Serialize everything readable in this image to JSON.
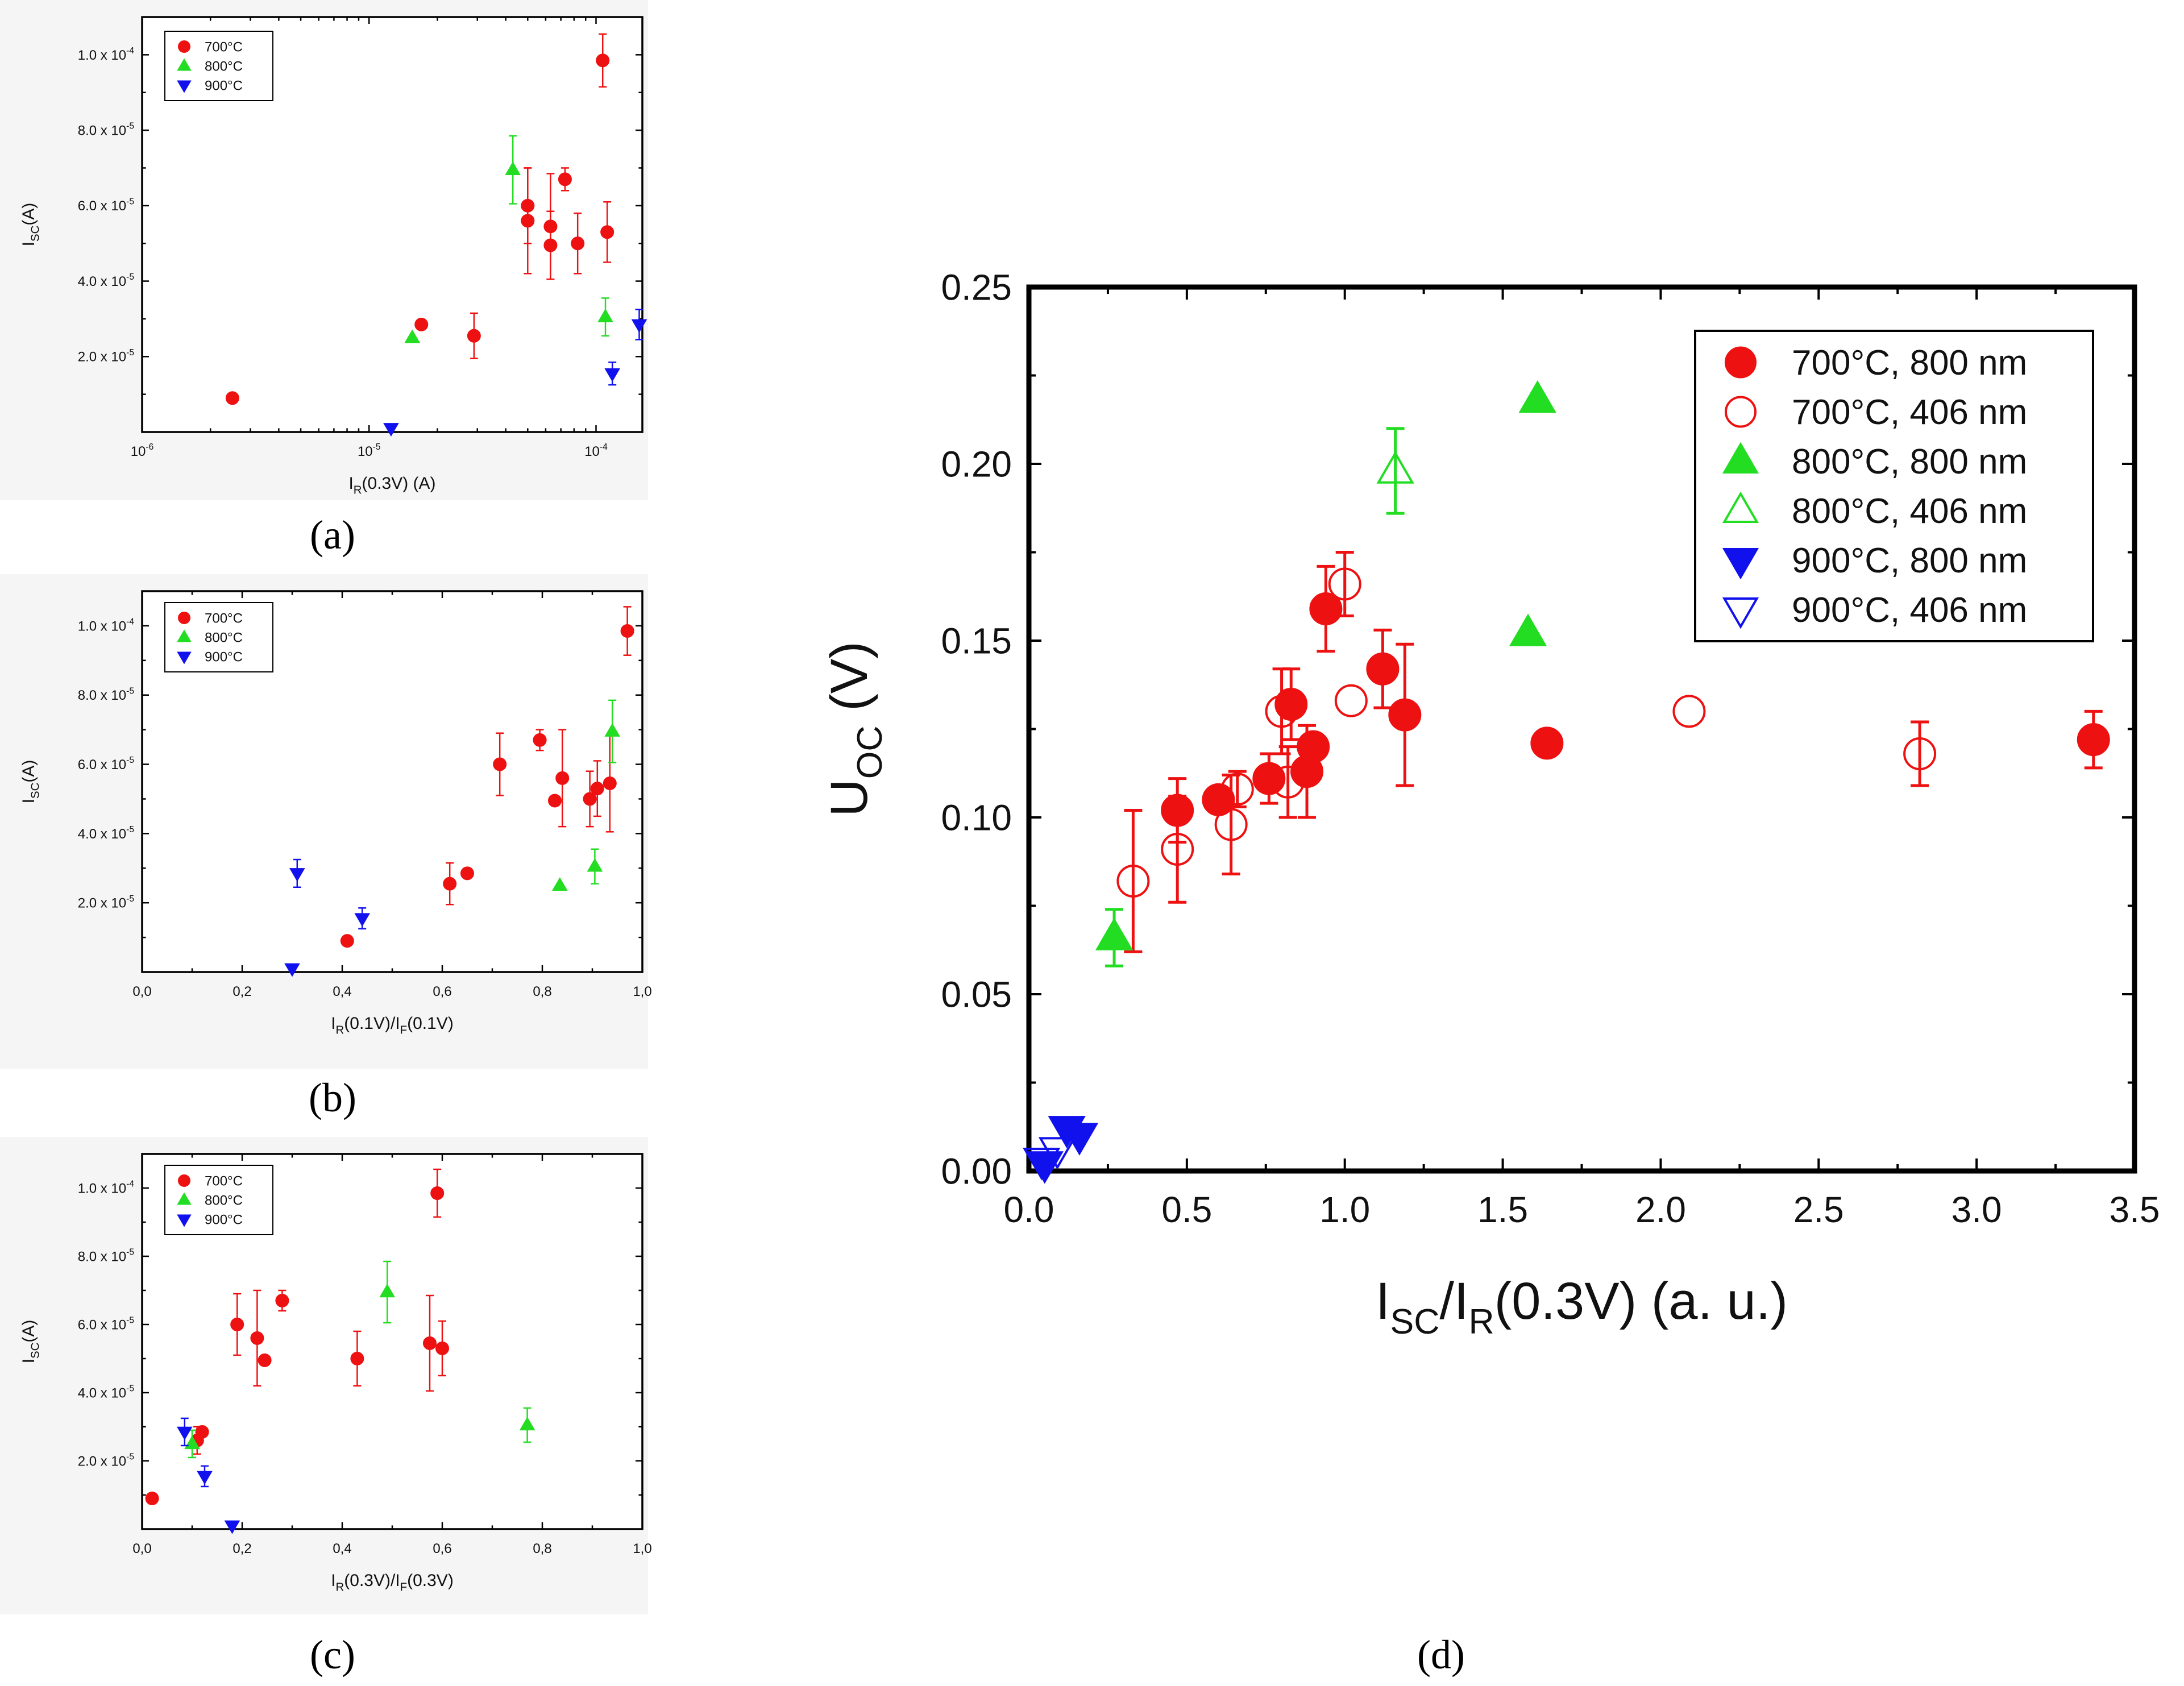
{
  "colors": {
    "red": "#ee1111",
    "green": "#22dd22",
    "blue": "#1111ee",
    "frame": "#000000"
  },
  "captions": {
    "a": "(a)",
    "b": "(b)",
    "c": "(c)",
    "d": "(d)"
  },
  "chart_data": [
    {
      "id": "a",
      "type": "scatter",
      "xlabel_main": "I",
      "xlabel_sub": "R",
      "xlabel_rest": "(0.3V) (A)",
      "ylabel_main": "I",
      "ylabel_sub": "SC",
      "ylabel_rest": "(A)",
      "x_scale": "log",
      "xlim": [
        1e-06,
        0.00016
      ],
      "ylim": [
        0,
        0.00011
      ],
      "x_ticks": [
        {
          "value": 1e-06,
          "base": "10",
          "exp": "-6"
        },
        {
          "value": 1e-05,
          "base": "10",
          "exp": "-5"
        },
        {
          "value": 0.0001,
          "base": "10",
          "exp": "-4"
        }
      ],
      "y_ticks": [
        {
          "value": 2e-05,
          "base": "2.0 x 10",
          "exp": "-5"
        },
        {
          "value": 4e-05,
          "base": "4.0 x 10",
          "exp": "-5"
        },
        {
          "value": 6e-05,
          "base": "6.0 x 10",
          "exp": "-5"
        },
        {
          "value": 8e-05,
          "base": "8.0 x 10",
          "exp": "-5"
        },
        {
          "value": 0.0001,
          "base": "1.0 x 10",
          "exp": "-4"
        }
      ],
      "legend": [
        {
          "label": "700°C",
          "marker": "circle",
          "color": "red"
        },
        {
          "label": "800°C",
          "marker": "tri-up",
          "color": "green"
        },
        {
          "label": "900°C",
          "marker": "tri-down",
          "color": "blue"
        }
      ],
      "series": [
        {
          "name": "700°C",
          "marker": "circle",
          "color": "red",
          "points": [
            {
              "x": 2.5e-06,
              "y": 9e-06
            },
            {
              "x": 1.7e-05,
              "y": 2.85e-05
            },
            {
              "x": 2.9e-05,
              "y": 2.55e-05,
              "err": 6e-06
            },
            {
              "x": 5e-05,
              "y": 6e-05,
              "err": 1e-05
            },
            {
              "x": 5e-05,
              "y": 5.6e-05,
              "err": 1.4e-05
            },
            {
              "x": 6.3e-05,
              "y": 5.45e-05,
              "err": 1.4e-05
            },
            {
              "x": 6.3e-05,
              "y": 4.95e-05,
              "err": 9e-06
            },
            {
              "x": 7.3e-05,
              "y": 6.7e-05,
              "err": 3e-06
            },
            {
              "x": 8.3e-05,
              "y": 5e-05,
              "err": 8e-06
            },
            {
              "x": 0.000107,
              "y": 9.85e-05,
              "err": 7e-06
            },
            {
              "x": 0.000112,
              "y": 5.3e-05,
              "err": 8e-06
            }
          ]
        },
        {
          "name": "800°C",
          "marker": "tri-up",
          "color": "green",
          "points": [
            {
              "x": 1.55e-05,
              "y": 2.5e-05
            },
            {
              "x": 4.3e-05,
              "y": 6.95e-05,
              "err": 9e-06
            },
            {
              "x": 0.00011,
              "y": 3.05e-05,
              "err": 5e-06
            }
          ]
        },
        {
          "name": "900°C",
          "marker": "tri-down",
          "color": "blue",
          "points": [
            {
              "x": 1.25e-05,
              "y": 1e-06
            },
            {
              "x": 0.000118,
              "y": 1.55e-05,
              "err": 3e-06
            },
            {
              "x": 0.000155,
              "y": 2.85e-05,
              "err": 4e-06
            }
          ]
        }
      ]
    },
    {
      "id": "b",
      "type": "scatter",
      "xlabel_main": "I",
      "xlabel_sub": "R",
      "xlabel_rest": "(0.1V)/I",
      "xlabel_sub2": "F",
      "xlabel_rest2": "(0.1V)",
      "ylabel_main": "I",
      "ylabel_sub": "SC",
      "ylabel_rest": "(A)",
      "x_scale": "linear",
      "xlim": [
        0,
        1.0
      ],
      "ylim": [
        0,
        0.00011
      ],
      "x_ticks": [
        {
          "value": 0,
          "label": "0,0"
        },
        {
          "value": 0.2,
          "label": "0,2"
        },
        {
          "value": 0.4,
          "label": "0,4"
        },
        {
          "value": 0.6,
          "label": "0,6"
        },
        {
          "value": 0.8,
          "label": "0,8"
        },
        {
          "value": 1.0,
          "label": "1,0"
        }
      ],
      "y_ticks": [
        {
          "value": 2e-05,
          "base": "2.0 x 10",
          "exp": "-5"
        },
        {
          "value": 4e-05,
          "base": "4.0 x 10",
          "exp": "-5"
        },
        {
          "value": 6e-05,
          "base": "6.0 x 10",
          "exp": "-5"
        },
        {
          "value": 8e-05,
          "base": "8.0 x 10",
          "exp": "-5"
        },
        {
          "value": 0.0001,
          "base": "1.0 x 10",
          "exp": "-4"
        }
      ],
      "legend": [
        {
          "label": "700°C",
          "marker": "circle",
          "color": "red"
        },
        {
          "label": "800°C",
          "marker": "tri-up",
          "color": "green"
        },
        {
          "label": "900°C",
          "marker": "tri-down",
          "color": "blue"
        }
      ],
      "series": [
        {
          "name": "700°C",
          "marker": "circle",
          "color": "red",
          "points": [
            {
              "x": 0.41,
              "y": 9e-06
            },
            {
              "x": 0.615,
              "y": 2.55e-05,
              "err": 6e-06
            },
            {
              "x": 0.65,
              "y": 2.85e-05
            },
            {
              "x": 0.715,
              "y": 6e-05,
              "err": 9e-06
            },
            {
              "x": 0.795,
              "y": 6.7e-05,
              "err": 3e-06
            },
            {
              "x": 0.825,
              "y": 4.95e-05
            },
            {
              "x": 0.84,
              "y": 5.6e-05,
              "err": 1.4e-05
            },
            {
              "x": 0.895,
              "y": 5e-05,
              "err": 8e-06
            },
            {
              "x": 0.91,
              "y": 5.3e-05,
              "err": 8e-06
            },
            {
              "x": 0.935,
              "y": 5.45e-05,
              "err": 1.4e-05
            },
            {
              "x": 0.97,
              "y": 9.85e-05,
              "err": 7e-06
            }
          ]
        },
        {
          "name": "800°C",
          "marker": "tri-up",
          "color": "green",
          "points": [
            {
              "x": 0.835,
              "y": 2.5e-05
            },
            {
              "x": 0.905,
              "y": 3.05e-05,
              "err": 5e-06
            },
            {
              "x": 0.94,
              "y": 6.95e-05,
              "err": 9e-06
            }
          ]
        },
        {
          "name": "900°C",
          "marker": "tri-down",
          "color": "blue",
          "points": [
            {
              "x": 0.3,
              "y": 1e-06
            },
            {
              "x": 0.31,
              "y": 2.85e-05,
              "err": 4e-06
            },
            {
              "x": 0.44,
              "y": 1.55e-05,
              "err": 3e-06
            }
          ]
        }
      ]
    },
    {
      "id": "c",
      "type": "scatter",
      "xlabel_main": "I",
      "xlabel_sub": "R",
      "xlabel_rest": "(0.3V)/I",
      "xlabel_sub2": "F",
      "xlabel_rest2": "(0.3V)",
      "ylabel_main": "I",
      "ylabel_sub": "SC",
      "ylabel_rest": "(A)",
      "x_scale": "linear",
      "xlim": [
        0,
        1.0
      ],
      "ylim": [
        0,
        0.00011
      ],
      "x_ticks": [
        {
          "value": 0,
          "label": "0,0"
        },
        {
          "value": 0.2,
          "label": "0,2"
        },
        {
          "value": 0.4,
          "label": "0,4"
        },
        {
          "value": 0.6,
          "label": "0,6"
        },
        {
          "value": 0.8,
          "label": "0,8"
        },
        {
          "value": 1.0,
          "label": "1,0"
        }
      ],
      "y_ticks": [
        {
          "value": 2e-05,
          "base": "2.0 x 10",
          "exp": "-5"
        },
        {
          "value": 4e-05,
          "base": "4.0 x 10",
          "exp": "-5"
        },
        {
          "value": 6e-05,
          "base": "6.0 x 10",
          "exp": "-5"
        },
        {
          "value": 8e-05,
          "base": "8.0 x 10",
          "exp": "-5"
        },
        {
          "value": 0.0001,
          "base": "1.0 x 10",
          "exp": "-4"
        }
      ],
      "legend": [
        {
          "label": "700°C",
          "marker": "circle",
          "color": "red"
        },
        {
          "label": "800°C",
          "marker": "tri-up",
          "color": "green"
        },
        {
          "label": "900°C",
          "marker": "tri-down",
          "color": "blue"
        }
      ],
      "series": [
        {
          "name": "700°C",
          "marker": "circle",
          "color": "red",
          "points": [
            {
              "x": 0.02,
              "y": 9e-06
            },
            {
              "x": 0.12,
              "y": 2.85e-05
            },
            {
              "x": 0.11,
              "y": 2.6e-05,
              "err": 4e-06
            },
            {
              "x": 0.19,
              "y": 6e-05,
              "err": 9e-06
            },
            {
              "x": 0.23,
              "y": 5.6e-05,
              "err": 1.4e-05
            },
            {
              "x": 0.245,
              "y": 4.95e-05
            },
            {
              "x": 0.28,
              "y": 6.7e-05,
              "err": 3e-06
            },
            {
              "x": 0.43,
              "y": 5e-05,
              "err": 8e-06
            },
            {
              "x": 0.575,
              "y": 5.45e-05,
              "err": 1.4e-05
            },
            {
              "x": 0.59,
              "y": 9.85e-05,
              "err": 7e-06
            },
            {
              "x": 0.6,
              "y": 5.3e-05,
              "err": 8e-06
            }
          ]
        },
        {
          "name": "800°C",
          "marker": "tri-up",
          "color": "green",
          "points": [
            {
              "x": 0.1,
              "y": 2.5e-05,
              "err": 4e-06
            },
            {
              "x": 0.49,
              "y": 6.95e-05,
              "err": 9e-06
            },
            {
              "x": 0.77,
              "y": 3.05e-05,
              "err": 5e-06
            }
          ]
        },
        {
          "name": "900°C",
          "marker": "tri-down",
          "color": "blue",
          "points": [
            {
              "x": 0.085,
              "y": 2.85e-05,
              "err": 4e-06
            },
            {
              "x": 0.125,
              "y": 1.55e-05,
              "err": 3e-06
            },
            {
              "x": 0.18,
              "y": 1e-06
            }
          ]
        }
      ]
    },
    {
      "id": "d",
      "type": "scatter",
      "xlabel_main": "I",
      "xlabel_sub": "SC",
      "xlabel_rest": "/I",
      "xlabel_sub2": "R",
      "xlabel_rest2": "(0.3V) (a. u.)",
      "ylabel_main": "U",
      "ylabel_sub": "OC",
      "ylabel_rest": " (V)",
      "x_scale": "linear",
      "xlim": [
        0,
        3.5
      ],
      "ylim": [
        0,
        0.25
      ],
      "x_ticks": [
        {
          "value": 0,
          "label": "0.0"
        },
        {
          "value": 0.5,
          "label": "0.5"
        },
        {
          "value": 1.0,
          "label": "1.0"
        },
        {
          "value": 1.5,
          "label": "1.5"
        },
        {
          "value": 2.0,
          "label": "2.0"
        },
        {
          "value": 2.5,
          "label": "2.5"
        },
        {
          "value": 3.0,
          "label": "3.0"
        },
        {
          "value": 3.5,
          "label": "3.5"
        }
      ],
      "y_ticks": [
        {
          "value": 0,
          "label": "0.00"
        },
        {
          "value": 0.05,
          "label": "0.05"
        },
        {
          "value": 0.1,
          "label": "0.10"
        },
        {
          "value": 0.15,
          "label": "0.15"
        },
        {
          "value": 0.2,
          "label": "0.20"
        },
        {
          "value": 0.25,
          "label": "0.25"
        }
      ],
      "legend": [
        {
          "label": "700°C, 800 nm",
          "marker": "circle",
          "color": "red",
          "filled": true
        },
        {
          "label": "700°C, 406 nm",
          "marker": "circle",
          "color": "red",
          "filled": false
        },
        {
          "label": "800°C, 800 nm",
          "marker": "tri-up",
          "color": "green",
          "filled": true
        },
        {
          "label": "800°C, 406 nm",
          "marker": "tri-up",
          "color": "green",
          "filled": false
        },
        {
          "label": "900°C, 800 nm",
          "marker": "tri-down",
          "color": "blue",
          "filled": true
        },
        {
          "label": "900°C, 406 nm",
          "marker": "tri-down",
          "color": "blue",
          "filled": false
        }
      ],
      "series": [
        {
          "name": "700°C, 800 nm",
          "marker": "circle",
          "color": "red",
          "filled": true,
          "points": [
            {
              "x": 0.47,
              "y": 0.102,
              "err": 0.009
            },
            {
              "x": 0.6,
              "y": 0.105
            },
            {
              "x": 0.76,
              "y": 0.111,
              "err": 0.007
            },
            {
              "x": 0.83,
              "y": 0.132,
              "err": 0.01
            },
            {
              "x": 0.88,
              "y": 0.113,
              "err": 0.013
            },
            {
              "x": 0.9,
              "y": 0.12
            },
            {
              "x": 0.94,
              "y": 0.159,
              "err": 0.012
            },
            {
              "x": 1.12,
              "y": 0.142,
              "err": 0.011
            },
            {
              "x": 1.19,
              "y": 0.129,
              "err": 0.02
            },
            {
              "x": 1.64,
              "y": 0.121
            },
            {
              "x": 3.37,
              "y": 0.122,
              "err": 0.008
            }
          ]
        },
        {
          "name": "700°C, 406 nm",
          "marker": "circle",
          "color": "red",
          "filled": false,
          "points": [
            {
              "x": 0.33,
              "y": 0.082,
              "err": 0.02
            },
            {
              "x": 0.47,
              "y": 0.091,
              "err": 0.015
            },
            {
              "x": 0.64,
              "y": 0.098,
              "err": 0.014
            },
            {
              "x": 0.66,
              "y": 0.108,
              "err": 0.005
            },
            {
              "x": 0.8,
              "y": 0.13,
              "err": 0.012
            },
            {
              "x": 0.82,
              "y": 0.11,
              "err": 0.01
            },
            {
              "x": 1.0,
              "y": 0.166,
              "err": 0.009
            },
            {
              "x": 1.02,
              "y": 0.133
            },
            {
              "x": 2.09,
              "y": 0.13
            },
            {
              "x": 2.82,
              "y": 0.118,
              "err": 0.009
            }
          ]
        },
        {
          "name": "800°C, 800 nm",
          "marker": "tri-up",
          "color": "green",
          "filled": true,
          "points": [
            {
              "x": 0.27,
              "y": 0.066,
              "err": 0.008
            },
            {
              "x": 1.58,
              "y": 0.152
            },
            {
              "x": 1.61,
              "y": 0.218
            }
          ]
        },
        {
          "name": "800°C, 406 nm",
          "marker": "tri-up",
          "color": "green",
          "filled": false,
          "points": [
            {
              "x": 1.16,
              "y": 0.198,
              "err": 0.012
            }
          ]
        },
        {
          "name": "900°C, 800 nm",
          "marker": "tri-down",
          "color": "blue",
          "filled": true,
          "points": [
            {
              "x": 0.05,
              "y": 0.002
            },
            {
              "x": 0.12,
              "y": 0.012
            },
            {
              "x": 0.16,
              "y": 0.01
            }
          ]
        },
        {
          "name": "900°C, 406 nm",
          "marker": "tri-down",
          "color": "blue",
          "filled": false,
          "points": [
            {
              "x": 0.04,
              "y": 0.003
            },
            {
              "x": 0.09,
              "y": 0.006
            }
          ]
        }
      ]
    }
  ]
}
